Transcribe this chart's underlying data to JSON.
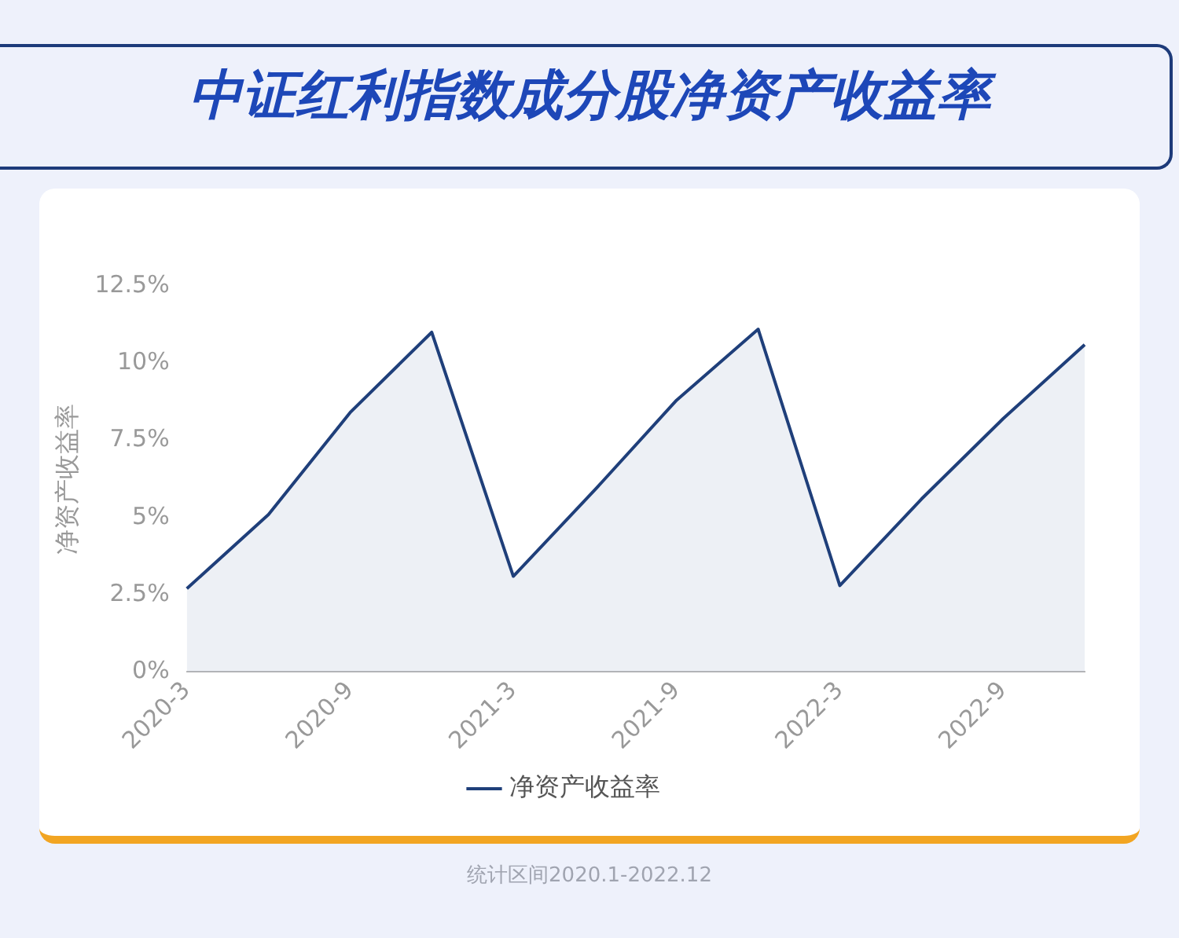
{
  "chart_data": {
    "type": "area",
    "title": "中证红利指数成分股净资产收益率",
    "ylabel": "净资产收益率",
    "categories": [
      "2020-3",
      null,
      "2020-9",
      null,
      "2021-3",
      null,
      "2021-9",
      null,
      "2022-3",
      null,
      "2022-9",
      null
    ],
    "series": [
      {
        "name": "净资产收益率",
        "color": "#1f3f7a",
        "values": [
          2.7,
          5.1,
          8.4,
          11.0,
          3.1,
          5.9,
          8.8,
          11.1,
          2.8,
          5.6,
          8.2,
          10.6
        ]
      }
    ],
    "ylim": [
      0,
      12.5
    ],
    "yticks": [
      {
        "value": 0,
        "label": "0%"
      },
      {
        "value": 2.5,
        "label": "2.5%"
      },
      {
        "value": 5,
        "label": "5%"
      },
      {
        "value": 7.5,
        "label": "7.5%"
      },
      {
        "value": 10,
        "label": "10%"
      },
      {
        "value": 12.5,
        "label": "12.5%"
      }
    ],
    "grid": false,
    "legend": "bottom",
    "marker": "none",
    "line_style": "solid",
    "annotations": [
      "统计区间2020.1-2022.12"
    ]
  }
}
